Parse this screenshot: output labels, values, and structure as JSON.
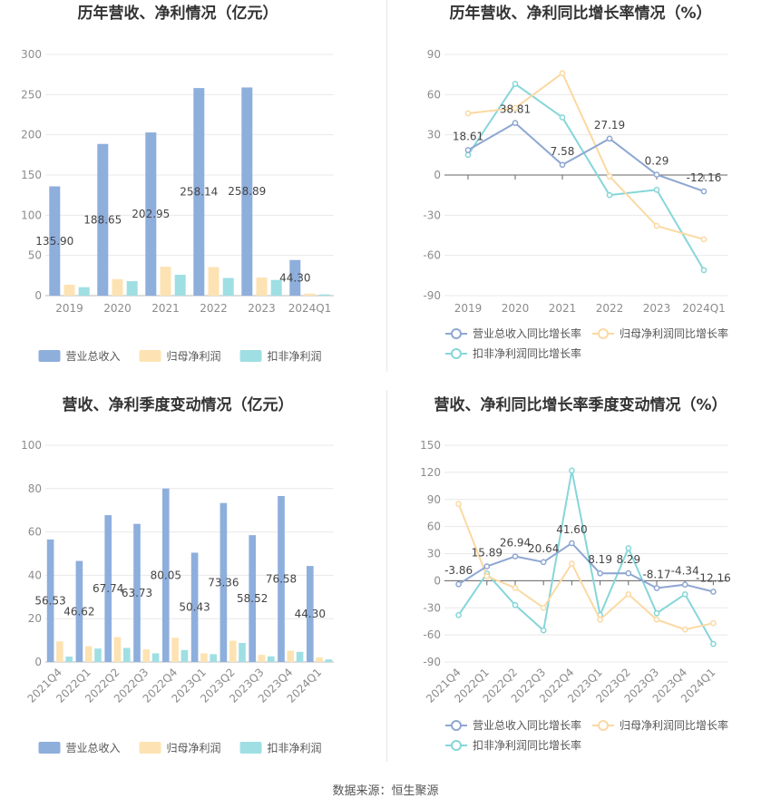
{
  "source_text": "数据来源：恒生聚源",
  "colors": {
    "revenue": "#8eaedc",
    "net_profit": "#fde3b3",
    "deducted_profit": "#9fdfe3",
    "revenue_line": "#8ea7d2",
    "net_profit_line": "#fbd9a3",
    "deducted_line": "#86d6d9",
    "grid": "#e8e8e8",
    "axis_text": "#8c8c8c",
    "label_text": "#444444"
  },
  "chart_data": [
    {
      "id": "annual-values",
      "type": "bar",
      "title": "历年营收、净利情况（亿元）",
      "categories": [
        "2019",
        "2020",
        "2021",
        "2022",
        "2023",
        "2024Q1"
      ],
      "ylim": [
        0,
        300
      ],
      "yticks": [
        0,
        50,
        100,
        150,
        200,
        250,
        300
      ],
      "grid": true,
      "legend_position": "bottom",
      "series": [
        {
          "name": "营业总收入",
          "values": [
            135.9,
            188.65,
            202.95,
            258.14,
            258.89,
            44.3
          ],
          "labels": [
            "135.90",
            "188.65",
            "202.95",
            "258.14",
            "258.89",
            "44.30"
          ]
        },
        {
          "name": "归母净利润",
          "values": [
            13.5,
            20.5,
            36.0,
            35.5,
            22.5,
            2.5
          ]
        },
        {
          "name": "扣非净利润",
          "values": [
            10.5,
            18.0,
            26.0,
            22.0,
            19.5,
            1.5
          ]
        }
      ]
    },
    {
      "id": "annual-growth",
      "type": "line",
      "title": "历年营收、净利同比增长率情况（%）",
      "categories": [
        "2019",
        "2020",
        "2021",
        "2022",
        "2023",
        "2024Q1"
      ],
      "ylim": [
        -90,
        90
      ],
      "yticks": [
        -90,
        -60,
        -30,
        0,
        30,
        60,
        90
      ],
      "grid": true,
      "legend_position": "bottom",
      "series": [
        {
          "name": "营业总收入同比增长率",
          "values": [
            18.61,
            38.81,
            7.58,
            27.19,
            0.29,
            -12.16
          ],
          "labels": [
            "18.61",
            "38.81",
            "7.58",
            "27.19",
            "0.29",
            "-12.16"
          ]
        },
        {
          "name": "归母净利润同比增长率",
          "values": [
            46,
            50,
            76,
            -1,
            -38,
            -48
          ]
        },
        {
          "name": "扣非净利润同比增长率",
          "values": [
            15,
            68,
            43,
            -15,
            -11,
            -71
          ]
        }
      ]
    },
    {
      "id": "quarterly-values",
      "type": "bar",
      "title": "营收、净利季度变动情况（亿元）",
      "categories": [
        "2021Q4",
        "2022Q1",
        "2022Q2",
        "2022Q3",
        "2022Q4",
        "2023Q1",
        "2023Q2",
        "2023Q3",
        "2023Q4",
        "2024Q1"
      ],
      "ylim": [
        0,
        100
      ],
      "yticks": [
        0,
        20,
        40,
        60,
        80,
        100
      ],
      "grid": true,
      "legend_position": "bottom",
      "series": [
        {
          "name": "营业总收入",
          "values": [
            56.53,
            46.62,
            67.74,
            63.73,
            80.05,
            50.43,
            73.36,
            58.52,
            76.58,
            44.3
          ],
          "labels": [
            "56.53",
            "46.62",
            "67.74",
            "63.73",
            "80.05",
            "50.43",
            "73.36",
            "58.52",
            "76.58",
            "44.30"
          ]
        },
        {
          "name": "归母净利润",
          "values": [
            9.5,
            7.3,
            11.5,
            5.8,
            11.2,
            4.0,
            9.8,
            3.3,
            5.2,
            2.1
          ]
        },
        {
          "name": "扣非净利润",
          "values": [
            2.5,
            6.2,
            6.5,
            4.0,
            5.5,
            3.6,
            8.8,
            2.6,
            4.7,
            1.2
          ]
        }
      ]
    },
    {
      "id": "quarterly-growth",
      "type": "line",
      "title": "营收、净利同比增长率季度变动情况（%）",
      "categories": [
        "2021Q4",
        "2022Q1",
        "2022Q2",
        "2022Q3",
        "2022Q4",
        "2023Q1",
        "2023Q2",
        "2023Q3",
        "2023Q4",
        "2024Q1"
      ],
      "ylim": [
        -90,
        150
      ],
      "yticks": [
        -90,
        -60,
        -30,
        0,
        30,
        60,
        90,
        120,
        150
      ],
      "grid": true,
      "legend_position": "bottom",
      "series": [
        {
          "name": "营业总收入同比增长率",
          "values": [
            -3.86,
            15.89,
            26.94,
            20.64,
            41.6,
            8.19,
            8.29,
            -8.17,
            -4.34,
            -12.16
          ],
          "labels": [
            "-3.86",
            "15.89",
            "26.94",
            "20.64",
            "41.60",
            "8.19",
            "8.29",
            "-8.17",
            "-4.34",
            "-12.16"
          ]
        },
        {
          "name": "归母净利润同比增长率",
          "values": [
            85,
            5,
            -8,
            -30,
            19,
            -43,
            -15,
            -43,
            -54,
            -47
          ]
        },
        {
          "name": "扣非净利润同比增长率",
          "values": [
            -38,
            8,
            -27,
            -55,
            122,
            -38,
            36,
            -36,
            -15,
            -70
          ]
        }
      ]
    }
  ]
}
